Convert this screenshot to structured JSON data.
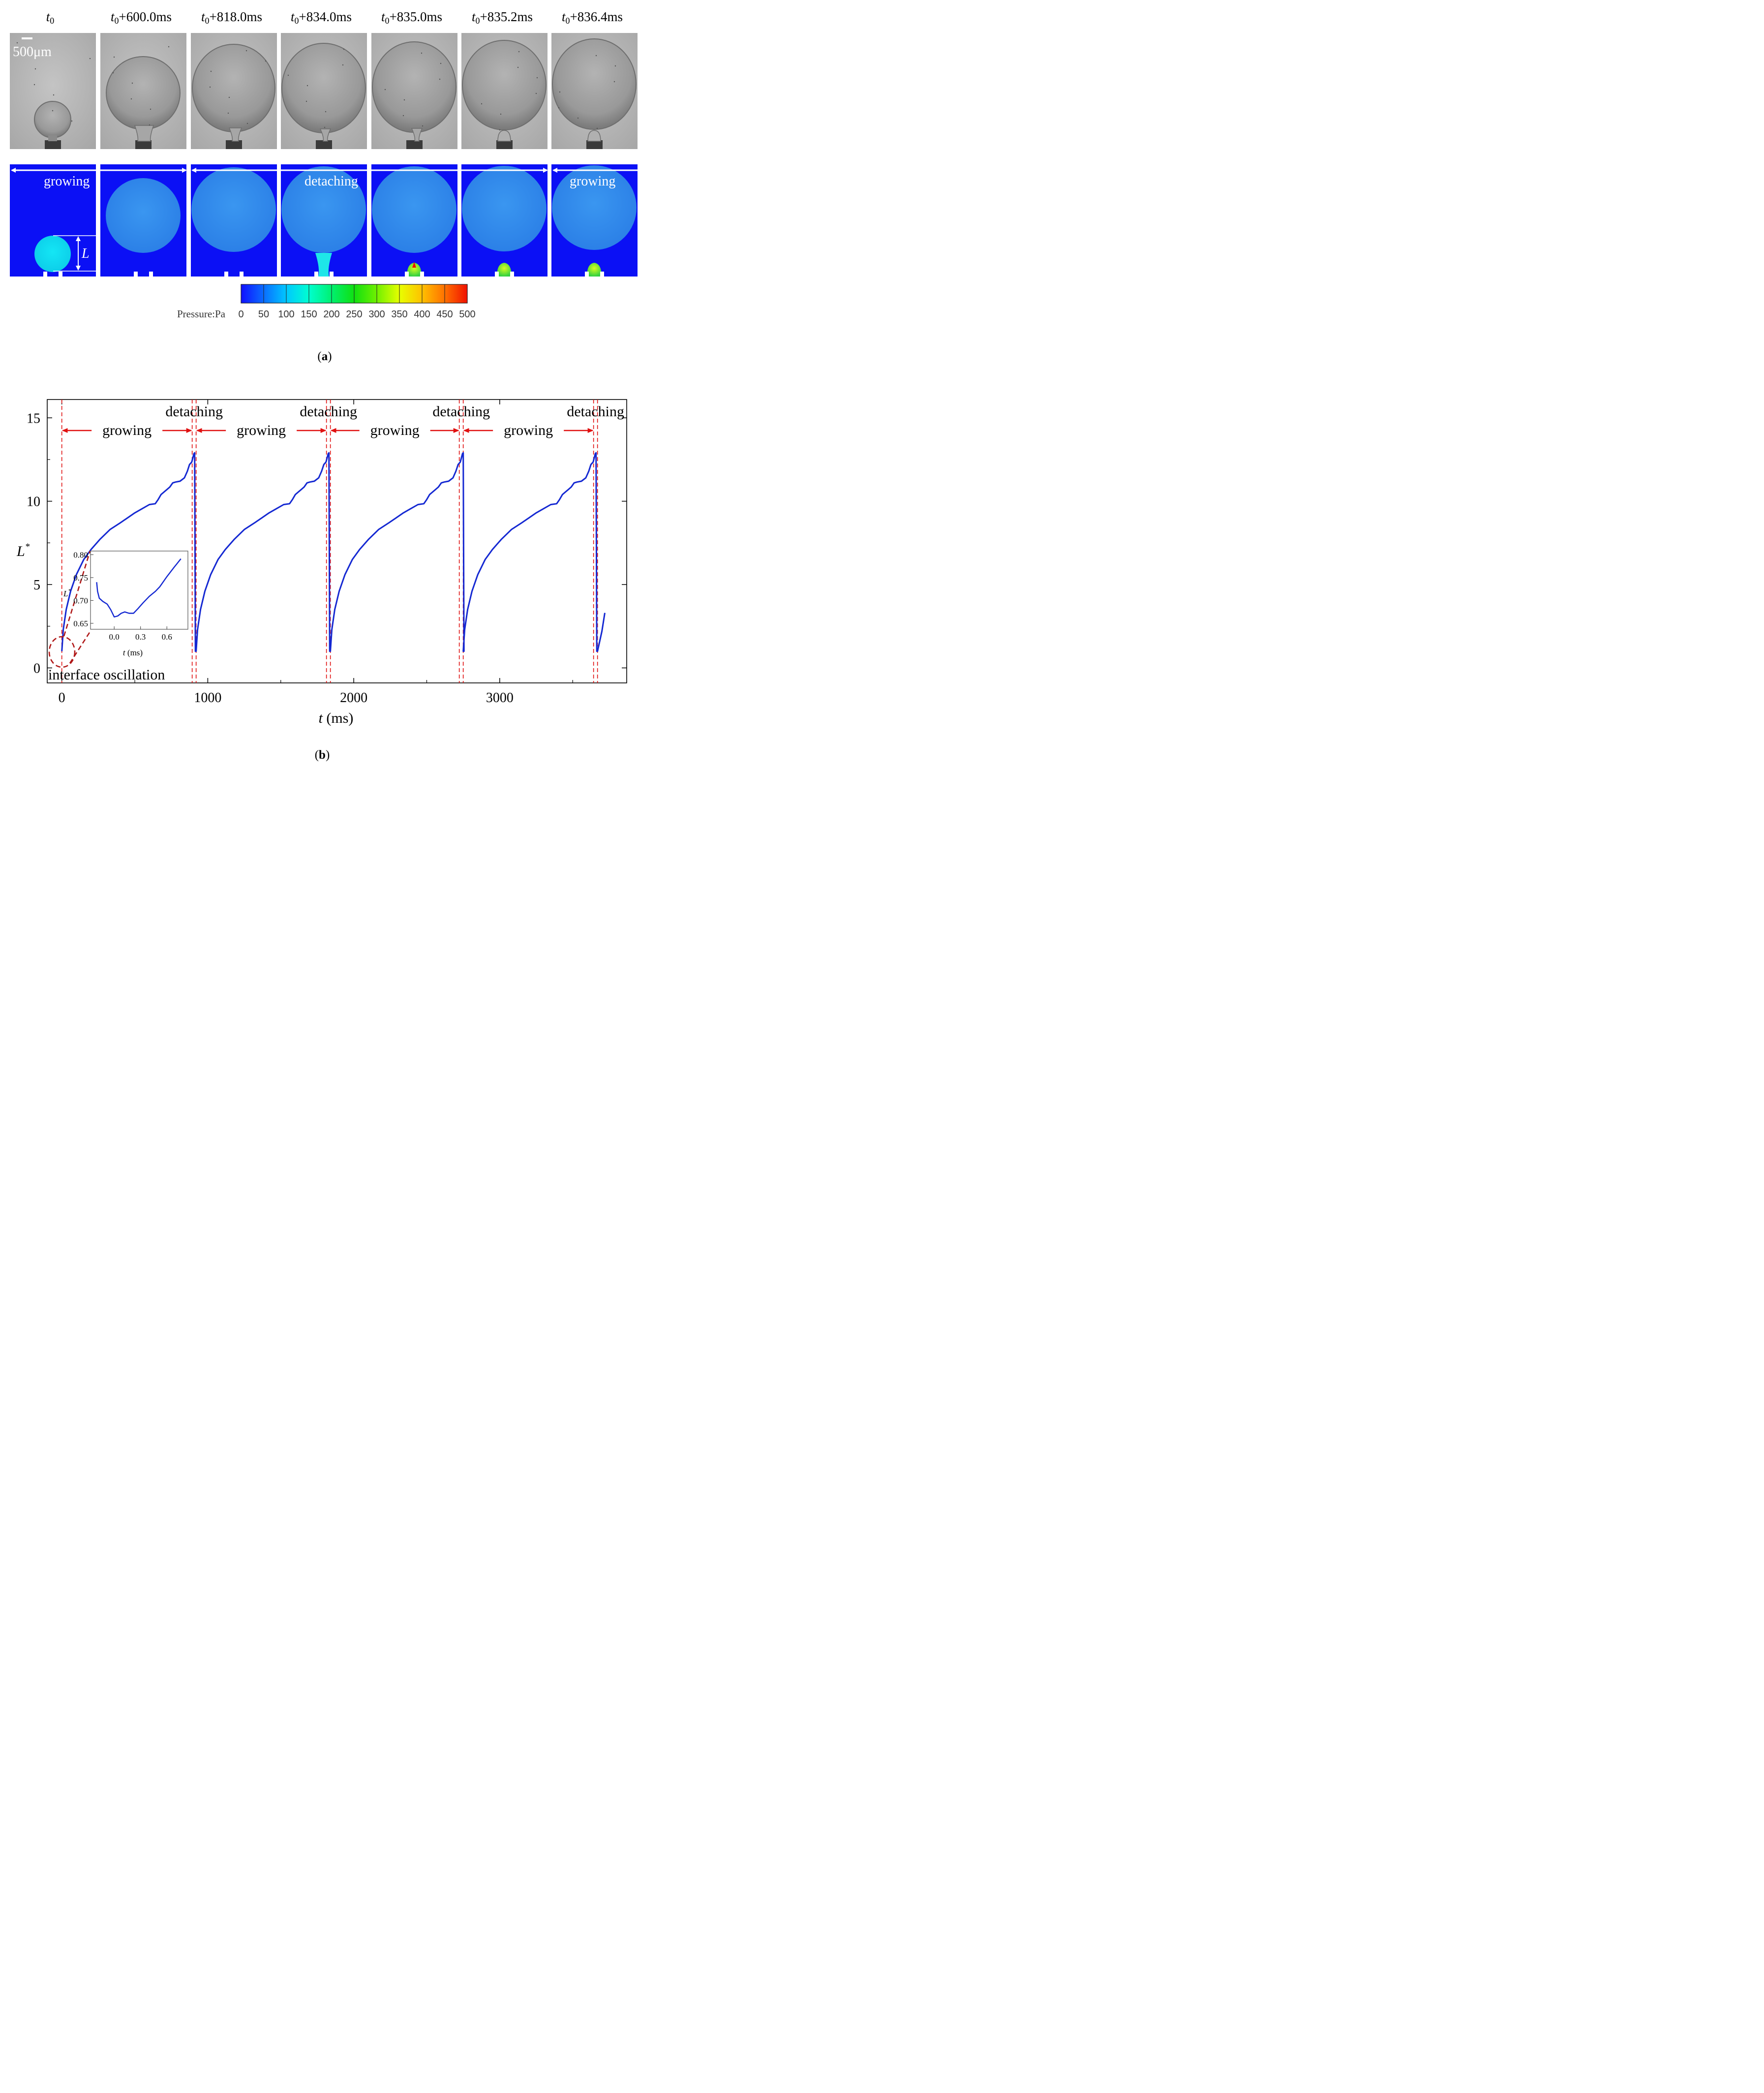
{
  "frame_titles": [
    {
      "t": "t",
      "sub": "0",
      "rest": ""
    },
    {
      "t": "t",
      "sub": "0",
      "rest": "+600.0ms"
    },
    {
      "t": "t",
      "sub": "0",
      "rest": "+818.0ms"
    },
    {
      "t": "t",
      "sub": "0",
      "rest": "+834.0ms"
    },
    {
      "t": "t",
      "sub": "0",
      "rest": "+835.0ms"
    },
    {
      "t": "t",
      "sub": "0",
      "rest": "+835.2ms"
    },
    {
      "t": "t",
      "sub": "0",
      "rest": "+836.4ms"
    }
  ],
  "photo_scale": "500μm",
  "sim_labels": {
    "growing_1": "growing",
    "detaching": "detaching",
    "growing_2": "growing",
    "length_symbol": "L"
  },
  "colorbar": {
    "title": "Pressure:Pa",
    "ticks": [
      "0",
      "50",
      "100",
      "150",
      "200",
      "250",
      "300",
      "350",
      "400",
      "450",
      "500"
    ],
    "colors": [
      "#1010ff",
      "#0a6dff",
      "#00c8ff",
      "#00ffd0",
      "#00f070",
      "#10e010",
      "#70f000",
      "#e8ff00",
      "#ffc000",
      "#ff7000",
      "#f01000"
    ]
  },
  "panel_labels": {
    "a": "a",
    "b": "b"
  },
  "chart_data": {
    "type": "line",
    "xlabel_italic": "t",
    "xlabel_unit": " (ms)",
    "ylabel": "L",
    "ylabel_sup": "*",
    "xlim": [
      -100,
      3870
    ],
    "ylim": [
      -0.9,
      16.1
    ],
    "xticks": [
      0,
      1000,
      2000,
      3000
    ],
    "xtick_labels": [
      "0",
      "1000",
      "2000",
      "3000"
    ],
    "yticks": [
      0,
      5,
      10,
      15
    ],
    "ytick_labels": [
      "0",
      "5",
      "10",
      "15"
    ],
    "line_color": "#1428d2",
    "marker_color": "#e01010",
    "cycle_starts": [
      0,
      920,
      1840,
      2750,
      3670
    ],
    "cycle_period": 920,
    "detach_windows": [
      [
        893,
        920
      ],
      [
        1813,
        1840
      ],
      [
        2723,
        2750
      ],
      [
        3643,
        3670
      ]
    ],
    "growth_curve": [
      [
        0,
        1.0
      ],
      [
        10,
        2.3
      ],
      [
        30,
        3.5
      ],
      [
        60,
        4.6
      ],
      [
        100,
        5.6
      ],
      [
        150,
        6.5
      ],
      [
        200,
        7.1
      ],
      [
        260,
        7.7
      ],
      [
        330,
        8.3
      ],
      [
        400,
        8.7
      ],
      [
        450,
        9.0
      ],
      [
        500,
        9.3
      ],
      [
        550,
        9.55
      ],
      [
        600,
        9.8
      ],
      [
        640,
        9.85
      ],
      [
        660,
        10.1
      ],
      [
        680,
        10.4
      ],
      [
        700,
        10.55
      ],
      [
        720,
        10.7
      ],
      [
        740,
        10.85
      ],
      [
        760,
        11.1
      ],
      [
        780,
        11.15
      ],
      [
        810,
        11.2
      ],
      [
        840,
        11.4
      ],
      [
        860,
        11.8
      ],
      [
        875,
        12.2
      ],
      [
        890,
        12.35
      ],
      [
        905,
        12.85
      ],
      [
        910,
        12.9
      ],
      [
        915,
        1.0
      ]
    ],
    "tail": [
      [
        3670,
        1.0
      ],
      [
        3700,
        2.2
      ],
      [
        3720,
        3.3
      ]
    ],
    "phase_labels": {
      "growing": "growing",
      "detaching": "detaching",
      "oscillation": "interface oscillation"
    },
    "inset": {
      "type": "line",
      "xlabel_italic": "t",
      "xlabel_unit": " (ms)",
      "ylabel": "L",
      "ylabel_sup": "*",
      "xlim": [
        -0.27,
        0.84
      ],
      "ylim": [
        0.637,
        0.808
      ],
      "xticks": [
        0.0,
        0.3,
        0.6
      ],
      "xtick_labels": [
        "0.0",
        "0.3",
        "0.6"
      ],
      "yticks": [
        0.65,
        0.7,
        0.75,
        0.8
      ],
      "ytick_labels": [
        "0.65",
        "0.70",
        "0.75",
        "0.80"
      ],
      "points": [
        [
          -0.2,
          0.74
        ],
        [
          -0.19,
          0.72
        ],
        [
          -0.17,
          0.705
        ],
        [
          -0.13,
          0.698
        ],
        [
          -0.08,
          0.692
        ],
        [
          -0.04,
          0.68
        ],
        [
          0.0,
          0.664
        ],
        [
          0.04,
          0.666
        ],
        [
          0.08,
          0.672
        ],
        [
          0.12,
          0.675
        ],
        [
          0.17,
          0.672
        ],
        [
          0.22,
          0.672
        ],
        [
          0.27,
          0.682
        ],
        [
          0.33,
          0.695
        ],
        [
          0.4,
          0.709
        ],
        [
          0.47,
          0.72
        ],
        [
          0.52,
          0.73
        ],
        [
          0.6,
          0.752
        ],
        [
          0.68,
          0.772
        ],
        [
          0.76,
          0.791
        ]
      ]
    }
  }
}
